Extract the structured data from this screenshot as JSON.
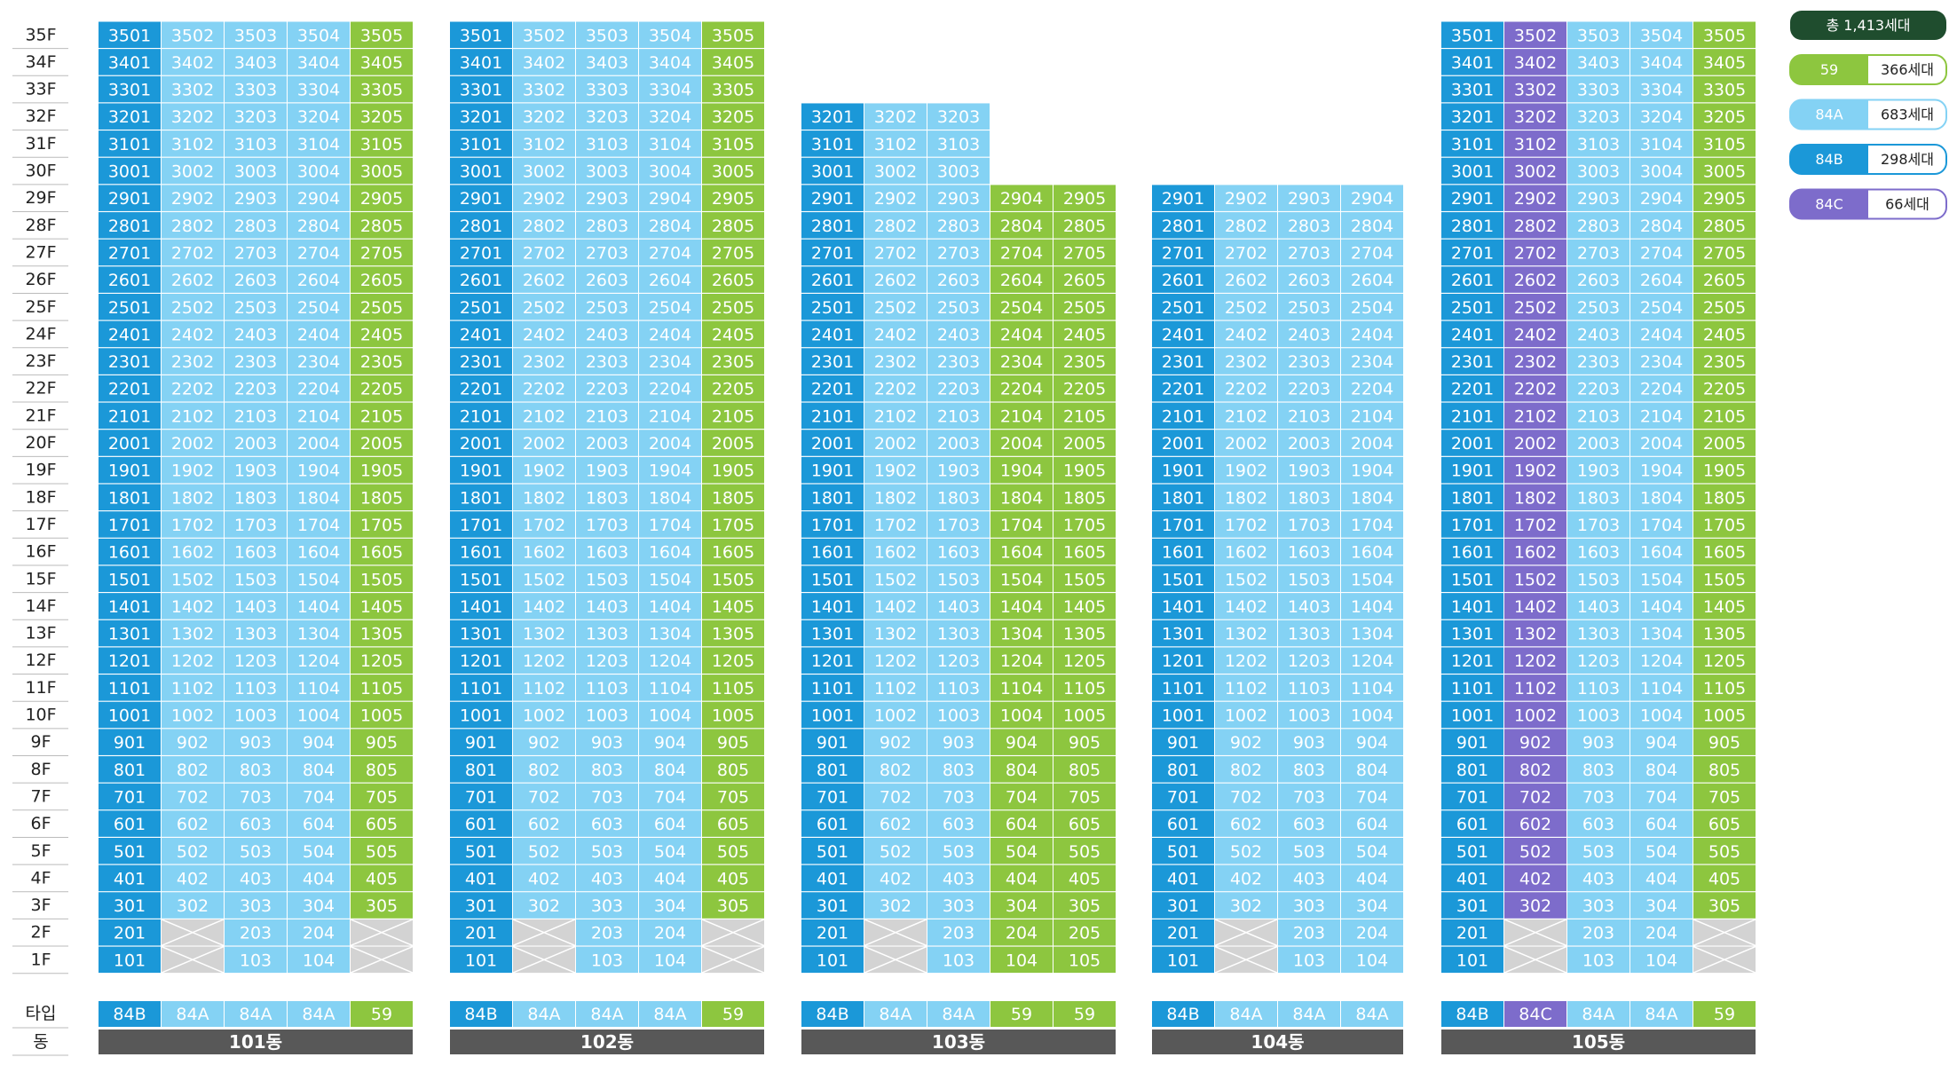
{
  "legend": {
    "total": "총 1,413세대",
    "types": [
      {
        "name": "59",
        "color": "#8dc63f",
        "count": "366세대"
      },
      {
        "name": "84A",
        "color": "#84d2f4",
        "count": "683세대"
      },
      {
        "name": "84B",
        "color": "#1b98d8",
        "count": "298세대"
      },
      {
        "name": "84C",
        "color": "#7d6ccb",
        "count": "66세대"
      }
    ]
  },
  "row_labels": {
    "type": "타입",
    "dong": "동"
  },
  "floors": [
    "35F",
    "34F",
    "33F",
    "32F",
    "31F",
    "30F",
    "29F",
    "28F",
    "27F",
    "26F",
    "25F",
    "24F",
    "23F",
    "22F",
    "21F",
    "20F",
    "19F",
    "18F",
    "17F",
    "16F",
    "15F",
    "14F",
    "13F",
    "12F",
    "11F",
    "10F",
    "9F",
    "8F",
    "7F",
    "6F",
    "5F",
    "4F",
    "3F",
    "2F",
    "1F"
  ],
  "buildings": [
    {
      "name": "101동",
      "types": [
        "84B",
        "84A",
        "84A",
        "84A",
        "59"
      ],
      "rows": [
        [
          "3501",
          "3502",
          "3503",
          "3504",
          "3505"
        ],
        [
          "3401",
          "3402",
          "3403",
          "3404",
          "3405"
        ],
        [
          "3301",
          "3302",
          "3303",
          "3304",
          "3305"
        ],
        [
          "3201",
          "3202",
          "3203",
          "3204",
          "3205"
        ],
        [
          "3101",
          "3102",
          "3103",
          "3104",
          "3105"
        ],
        [
          "3001",
          "3002",
          "3003",
          "3004",
          "3005"
        ],
        [
          "2901",
          "2902",
          "2903",
          "2904",
          "2905"
        ],
        [
          "2801",
          "2802",
          "2803",
          "2804",
          "2805"
        ],
        [
          "2701",
          "2702",
          "2703",
          "2704",
          "2705"
        ],
        [
          "2601",
          "2602",
          "2603",
          "2604",
          "2605"
        ],
        [
          "2501",
          "2502",
          "2503",
          "2504",
          "2505"
        ],
        [
          "2401",
          "2402",
          "2403",
          "2404",
          "2405"
        ],
        [
          "2301",
          "2302",
          "2303",
          "2304",
          "2305"
        ],
        [
          "2201",
          "2202",
          "2203",
          "2204",
          "2205"
        ],
        [
          "2101",
          "2102",
          "2103",
          "2104",
          "2105"
        ],
        [
          "2001",
          "2002",
          "2003",
          "2004",
          "2005"
        ],
        [
          "1901",
          "1902",
          "1903",
          "1904",
          "1905"
        ],
        [
          "1801",
          "1802",
          "1803",
          "1804",
          "1805"
        ],
        [
          "1701",
          "1702",
          "1703",
          "1704",
          "1705"
        ],
        [
          "1601",
          "1602",
          "1603",
          "1604",
          "1605"
        ],
        [
          "1501",
          "1502",
          "1503",
          "1504",
          "1505"
        ],
        [
          "1401",
          "1402",
          "1403",
          "1404",
          "1405"
        ],
        [
          "1301",
          "1302",
          "1303",
          "1304",
          "1305"
        ],
        [
          "1201",
          "1202",
          "1203",
          "1204",
          "1205"
        ],
        [
          "1101",
          "1102",
          "1103",
          "1104",
          "1105"
        ],
        [
          "1001",
          "1002",
          "1003",
          "1004",
          "1005"
        ],
        [
          "901",
          "902",
          "903",
          "904",
          "905"
        ],
        [
          "801",
          "802",
          "803",
          "804",
          "805"
        ],
        [
          "701",
          "702",
          "703",
          "704",
          "705"
        ],
        [
          "601",
          "602",
          "603",
          "604",
          "605"
        ],
        [
          "501",
          "502",
          "503",
          "504",
          "505"
        ],
        [
          "401",
          "402",
          "403",
          "404",
          "405"
        ],
        [
          "301",
          "302",
          "303",
          "304",
          "305"
        ],
        [
          "201",
          null,
          "203",
          "204",
          null
        ],
        [
          "101",
          null,
          "103",
          "104",
          null
        ]
      ]
    },
    {
      "name": "102동",
      "types": [
        "84B",
        "84A",
        "84A",
        "84A",
        "59"
      ],
      "rows": [
        [
          "3501",
          "3502",
          "3503",
          "3504",
          "3505"
        ],
        [
          "3401",
          "3402",
          "3403",
          "3404",
          "3405"
        ],
        [
          "3301",
          "3302",
          "3303",
          "3304",
          "3305"
        ],
        [
          "3201",
          "3202",
          "3203",
          "3204",
          "3205"
        ],
        [
          "3101",
          "3102",
          "3103",
          "3104",
          "3105"
        ],
        [
          "3001",
          "3002",
          "3003",
          "3004",
          "3005"
        ],
        [
          "2901",
          "2902",
          "2903",
          "2904",
          "2905"
        ],
        [
          "2801",
          "2802",
          "2803",
          "2804",
          "2805"
        ],
        [
          "2701",
          "2702",
          "2703",
          "2704",
          "2705"
        ],
        [
          "2601",
          "2602",
          "2603",
          "2604",
          "2605"
        ],
        [
          "2501",
          "2502",
          "2503",
          "2504",
          "2505"
        ],
        [
          "2401",
          "2402",
          "2403",
          "2404",
          "2405"
        ],
        [
          "2301",
          "2302",
          "2303",
          "2304",
          "2305"
        ],
        [
          "2201",
          "2202",
          "2203",
          "2204",
          "2205"
        ],
        [
          "2101",
          "2102",
          "2103",
          "2104",
          "2105"
        ],
        [
          "2001",
          "2002",
          "2003",
          "2004",
          "2005"
        ],
        [
          "1901",
          "1902",
          "1903",
          "1904",
          "1905"
        ],
        [
          "1801",
          "1802",
          "1803",
          "1804",
          "1805"
        ],
        [
          "1701",
          "1702",
          "1703",
          "1704",
          "1705"
        ],
        [
          "1601",
          "1602",
          "1603",
          "1604",
          "1605"
        ],
        [
          "1501",
          "1502",
          "1503",
          "1504",
          "1505"
        ],
        [
          "1401",
          "1402",
          "1403",
          "1404",
          "1405"
        ],
        [
          "1301",
          "1302",
          "1303",
          "1304",
          "1305"
        ],
        [
          "1201",
          "1202",
          "1203",
          "1204",
          "1205"
        ],
        [
          "1101",
          "1102",
          "1103",
          "1104",
          "1105"
        ],
        [
          "1001",
          "1002",
          "1003",
          "1004",
          "1005"
        ],
        [
          "901",
          "902",
          "903",
          "904",
          "905"
        ],
        [
          "801",
          "802",
          "803",
          "804",
          "805"
        ],
        [
          "701",
          "702",
          "703",
          "704",
          "705"
        ],
        [
          "601",
          "602",
          "603",
          "604",
          "605"
        ],
        [
          "501",
          "502",
          "503",
          "504",
          "505"
        ],
        [
          "401",
          "402",
          "403",
          "404",
          "405"
        ],
        [
          "301",
          "302",
          "303",
          "304",
          "305"
        ],
        [
          "201",
          null,
          "203",
          "204",
          null
        ],
        [
          "101",
          null,
          "103",
          "104",
          null
        ]
      ]
    },
    {
      "name": "103동",
      "types": [
        "84B",
        "84A",
        "84A",
        "59",
        "59"
      ],
      "rows": [
        [
          "3201",
          "3202",
          "3203"
        ],
        [
          "3101",
          "3102",
          "3103"
        ],
        [
          "3001",
          "3002",
          "3003"
        ],
        [
          "2901",
          "2902",
          "2903",
          "2904",
          "2905"
        ],
        [
          "2801",
          "2802",
          "2803",
          "2804",
          "2805"
        ],
        [
          "2701",
          "2702",
          "2703",
          "2704",
          "2705"
        ],
        [
          "2601",
          "2602",
          "2603",
          "2604",
          "2605"
        ],
        [
          "2501",
          "2502",
          "2503",
          "2504",
          "2505"
        ],
        [
          "2401",
          "2402",
          "2403",
          "2404",
          "2405"
        ],
        [
          "2301",
          "2302",
          "2303",
          "2304",
          "2305"
        ],
        [
          "2201",
          "2202",
          "2203",
          "2204",
          "2205"
        ],
        [
          "2101",
          "2102",
          "2103",
          "2104",
          "2105"
        ],
        [
          "2001",
          "2002",
          "2003",
          "2004",
          "2005"
        ],
        [
          "1901",
          "1902",
          "1903",
          "1904",
          "1905"
        ],
        [
          "1801",
          "1802",
          "1803",
          "1804",
          "1805"
        ],
        [
          "1701",
          "1702",
          "1703",
          "1704",
          "1705"
        ],
        [
          "1601",
          "1602",
          "1603",
          "1604",
          "1605"
        ],
        [
          "1501",
          "1502",
          "1503",
          "1504",
          "1505"
        ],
        [
          "1401",
          "1402",
          "1403",
          "1404",
          "1405"
        ],
        [
          "1301",
          "1302",
          "1303",
          "1304",
          "1305"
        ],
        [
          "1201",
          "1202",
          "1203",
          "1204",
          "1205"
        ],
        [
          "1101",
          "1102",
          "1103",
          "1104",
          "1105"
        ],
        [
          "1001",
          "1002",
          "1003",
          "1004",
          "1005"
        ],
        [
          "901",
          "902",
          "903",
          "904",
          "905"
        ],
        [
          "801",
          "802",
          "803",
          "804",
          "805"
        ],
        [
          "701",
          "702",
          "703",
          "704",
          "705"
        ],
        [
          "601",
          "602",
          "603",
          "604",
          "605"
        ],
        [
          "501",
          "502",
          "503",
          "504",
          "505"
        ],
        [
          "401",
          "402",
          "403",
          "404",
          "405"
        ],
        [
          "301",
          "302",
          "303",
          "304",
          "305"
        ],
        [
          "201",
          null,
          "203",
          "204",
          "205"
        ],
        [
          "101",
          null,
          "103",
          "104",
          "105"
        ]
      ]
    },
    {
      "name": "104동",
      "types": [
        "84B",
        "84A",
        "84A",
        "84A"
      ],
      "rows": [
        [
          "2901",
          "2902",
          "2903",
          "2904"
        ],
        [
          "2801",
          "2802",
          "2803",
          "2804"
        ],
        [
          "2701",
          "2702",
          "2703",
          "2704"
        ],
        [
          "2601",
          "2602",
          "2603",
          "2604"
        ],
        [
          "2501",
          "2502",
          "2503",
          "2504"
        ],
        [
          "2401",
          "2402",
          "2403",
          "2404"
        ],
        [
          "2301",
          "2302",
          "2303",
          "2304"
        ],
        [
          "2201",
          "2202",
          "2203",
          "2204"
        ],
        [
          "2101",
          "2102",
          "2103",
          "2104"
        ],
        [
          "2001",
          "2002",
          "2003",
          "2004"
        ],
        [
          "1901",
          "1902",
          "1903",
          "1904"
        ],
        [
          "1801",
          "1802",
          "1803",
          "1804"
        ],
        [
          "1701",
          "1702",
          "1703",
          "1704"
        ],
        [
          "1601",
          "1602",
          "1603",
          "1604"
        ],
        [
          "1501",
          "1502",
          "1503",
          "1504"
        ],
        [
          "1401",
          "1402",
          "1403",
          "1404"
        ],
        [
          "1301",
          "1302",
          "1303",
          "1304"
        ],
        [
          "1201",
          "1202",
          "1203",
          "1204"
        ],
        [
          "1101",
          "1102",
          "1103",
          "1104"
        ],
        [
          "1001",
          "1002",
          "1003",
          "1004"
        ],
        [
          "901",
          "902",
          "903",
          "904"
        ],
        [
          "801",
          "802",
          "803",
          "804"
        ],
        [
          "701",
          "702",
          "703",
          "704"
        ],
        [
          "601",
          "602",
          "603",
          "604"
        ],
        [
          "501",
          "502",
          "503",
          "504"
        ],
        [
          "401",
          "402",
          "403",
          "404"
        ],
        [
          "301",
          "302",
          "303",
          "304"
        ],
        [
          "201",
          null,
          "203",
          "204"
        ],
        [
          "101",
          null,
          "103",
          "104"
        ]
      ]
    },
    {
      "name": "105동",
      "types": [
        "84B",
        "84C",
        "84A",
        "84A",
        "59"
      ],
      "rows": [
        [
          "3501",
          "3502",
          "3503",
          "3504",
          "3505"
        ],
        [
          "3401",
          "3402",
          "3403",
          "3404",
          "3405"
        ],
        [
          "3301",
          "3302",
          "3303",
          "3304",
          "3305"
        ],
        [
          "3201",
          "3202",
          "3203",
          "3204",
          "3205"
        ],
        [
          "3101",
          "3102",
          "3103",
          "3104",
          "3105"
        ],
        [
          "3001",
          "3002",
          "3003",
          "3004",
          "3005"
        ],
        [
          "2901",
          "2902",
          "2903",
          "2904",
          "2905"
        ],
        [
          "2801",
          "2802",
          "2803",
          "2804",
          "2805"
        ],
        [
          "2701",
          "2702",
          "2703",
          "2704",
          "2705"
        ],
        [
          "2601",
          "2602",
          "2603",
          "2604",
          "2605"
        ],
        [
          "2501",
          "2502",
          "2503",
          "2504",
          "2505"
        ],
        [
          "2401",
          "2402",
          "2403",
          "2404",
          "2405"
        ],
        [
          "2301",
          "2302",
          "2303",
          "2304",
          "2305"
        ],
        [
          "2201",
          "2202",
          "2203",
          "2204",
          "2205"
        ],
        [
          "2101",
          "2102",
          "2103",
          "2104",
          "2105"
        ],
        [
          "2001",
          "2002",
          "2003",
          "2004",
          "2005"
        ],
        [
          "1901",
          "1902",
          "1903",
          "1904",
          "1905"
        ],
        [
          "1801",
          "1802",
          "1803",
          "1804",
          "1805"
        ],
        [
          "1701",
          "1702",
          "1703",
          "1704",
          "1705"
        ],
        [
          "1601",
          "1602",
          "1603",
          "1604",
          "1605"
        ],
        [
          "1501",
          "1502",
          "1503",
          "1504",
          "1505"
        ],
        [
          "1401",
          "1402",
          "1403",
          "1404",
          "1405"
        ],
        [
          "1301",
          "1302",
          "1303",
          "1304",
          "1305"
        ],
        [
          "1201",
          "1202",
          "1203",
          "1204",
          "1205"
        ],
        [
          "1101",
          "1102",
          "1103",
          "1104",
          "1105"
        ],
        [
          "1001",
          "1002",
          "1003",
          "1004",
          "1005"
        ],
        [
          "901",
          "902",
          "903",
          "904",
          "905"
        ],
        [
          "801",
          "802",
          "803",
          "804",
          "805"
        ],
        [
          "701",
          "702",
          "703",
          "704",
          "705"
        ],
        [
          "601",
          "602",
          "603",
          "604",
          "605"
        ],
        [
          "501",
          "502",
          "503",
          "504",
          "505"
        ],
        [
          "401",
          "402",
          "403",
          "404",
          "405"
        ],
        [
          "301",
          "302",
          "303",
          "304",
          "305"
        ],
        [
          "201",
          null,
          "203",
          "204",
          null
        ],
        [
          "101",
          null,
          "103",
          "104",
          null
        ]
      ]
    }
  ]
}
